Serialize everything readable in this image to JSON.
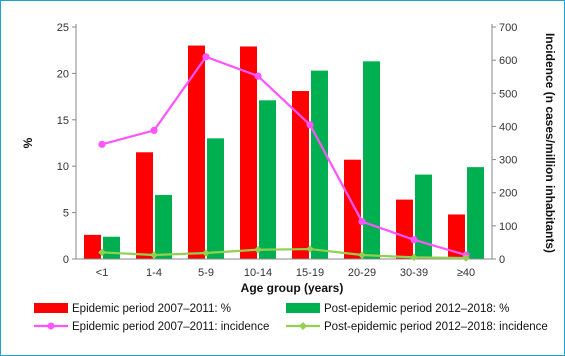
{
  "chart_data": {
    "type": "bar",
    "categories": [
      "<1",
      "1-4",
      "5-9",
      "10-14",
      "15-19",
      "20-29",
      "30-39",
      "≥40"
    ],
    "series": [
      {
        "name": "Epidemic period 2007–2011: %",
        "type": "bar",
        "axis": "left",
        "color": "#ff0000",
        "values": [
          2.6,
          11.5,
          23.0,
          22.9,
          18.1,
          10.7,
          6.4,
          4.8
        ]
      },
      {
        "name": "Post-epidemic period 2012–2018: %",
        "type": "bar",
        "axis": "left",
        "color": "#00b050",
        "values": [
          2.4,
          6.9,
          13.0,
          17.1,
          20.3,
          21.3,
          9.1,
          9.9
        ]
      },
      {
        "name": "Epidemic period 2007–2011: incidence",
        "type": "line",
        "axis": "right",
        "color": "#ff55ff",
        "marker": "circle",
        "values": [
          346,
          388,
          610,
          552,
          405,
          113,
          58,
          12
        ]
      },
      {
        "name": "Post-epidemic period 2012–2018: incidence",
        "type": "line",
        "axis": "right",
        "color": "#92d050",
        "marker": "diamond",
        "values": [
          20,
          12,
          18,
          28,
          30,
          12,
          5,
          3
        ]
      }
    ],
    "xlabel": "Age group (years)",
    "ylabel": "%",
    "ylabel_right": "Incidence (n cases/million inhabitants)",
    "ylim": [
      0,
      25
    ],
    "yticks": [
      0,
      5,
      10,
      15,
      20,
      25
    ],
    "ylim_right": [
      0,
      700
    ],
    "yticks_right": [
      0,
      100,
      200,
      300,
      400,
      500,
      600,
      700
    ],
    "grid": false,
    "legend_position": "bottom"
  }
}
